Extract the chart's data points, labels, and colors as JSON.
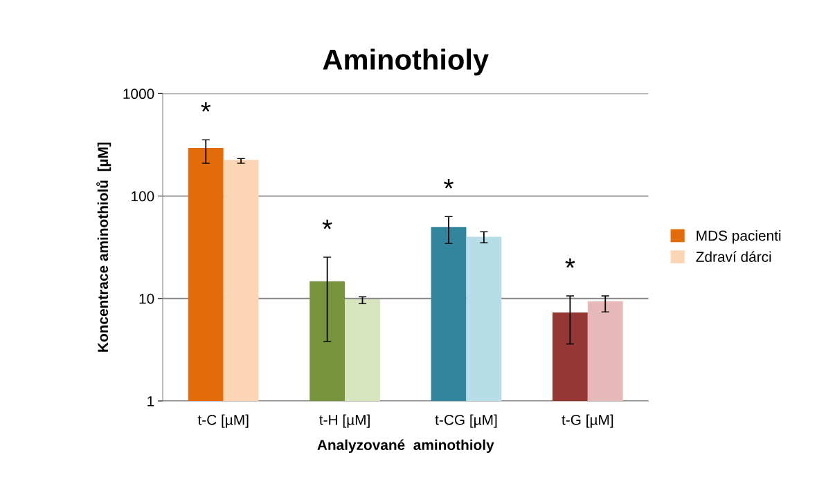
{
  "chart_data": {
    "type": "bar",
    "title": "Aminothioly",
    "xlabel": "Analyzované  aminothioly",
    "ylabel": "Koncentrace aminothiolů  [µM]",
    "categories": [
      "t-C [µM]",
      "t-H [µM]",
      "t-CG [µM]",
      "t-G [µM]"
    ],
    "series": [
      {
        "name": "MDS pacienti",
        "color": "#e36c0a",
        "colors": [
          "#e36c0a",
          "#77933c",
          "#31859c",
          "#953735"
        ],
        "values": [
          294,
          14.7,
          50,
          7.3
        ],
        "errors": [
          [
            209,
            354
          ],
          [
            3.8,
            25.3
          ],
          [
            34.5,
            63
          ],
          [
            3.6,
            10.6
          ]
        ]
      },
      {
        "name": "Zdraví dárci",
        "color": "#fcd5b5",
        "colors": [
          "#fcd5b5",
          "#d7e4bd",
          "#b7dee8",
          "#e6b9b8"
        ],
        "values": [
          225,
          9.8,
          40,
          9.4
        ],
        "errors": [
          [
            209,
            232
          ],
          [
            8.9,
            10.4
          ],
          [
            35,
            44.8
          ],
          [
            7.4,
            10.6
          ]
        ]
      }
    ],
    "log": "y",
    "ylim": [
      1,
      1000
    ],
    "yticks": [
      1,
      10,
      100,
      1000
    ],
    "grid": "y",
    "legend": "right",
    "annotations": [
      "*",
      "*",
      "*",
      "*"
    ]
  }
}
